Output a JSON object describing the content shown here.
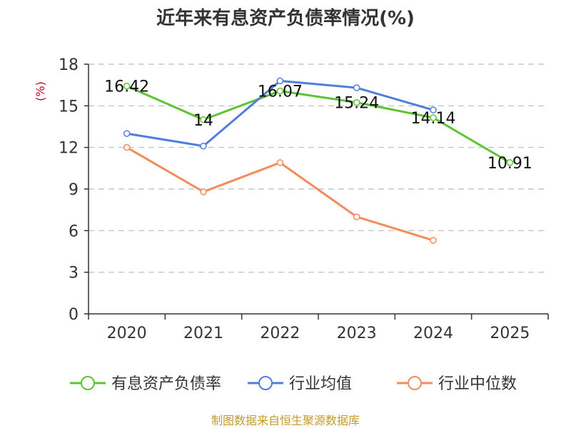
{
  "colors": {
    "debt_ratio": "#5cc431",
    "industry_avg": "#4f7fdb",
    "industry_median": "#f28c5b",
    "grid": "#bbbbbb",
    "axis": "#333333",
    "unit": "#d0021b",
    "source": "#c59a2a"
  },
  "chart_data": {
    "type": "line",
    "title": "近年来有息资产负债率情况(%)",
    "ylabel": "(%)",
    "xlabel": "",
    "categories": [
      "2020",
      "2021",
      "2022",
      "2023",
      "2024",
      "2025"
    ],
    "ylim": [
      0,
      18
    ],
    "yticks": [
      0,
      3,
      6,
      9,
      12,
      15,
      18
    ],
    "grid": true,
    "legend_position": "bottom",
    "series": [
      {
        "name": "有息资产负债率",
        "values": [
          16.42,
          14,
          16.07,
          15.24,
          14.14,
          10.91
        ],
        "labels": [
          "16.42",
          "14",
          "16.07",
          "15.24",
          "14.14",
          "10.91"
        ],
        "color_key": "debt_ratio"
      },
      {
        "name": "行业均值",
        "values": [
          13.0,
          12.1,
          16.8,
          16.3,
          14.7,
          null
        ],
        "color_key": "industry_avg"
      },
      {
        "name": "行业中位数",
        "values": [
          12.0,
          8.8,
          10.9,
          7.0,
          5.3,
          null
        ],
        "color_key": "industry_median"
      }
    ]
  },
  "source_text": "制图数据来自恒生聚源数据库"
}
